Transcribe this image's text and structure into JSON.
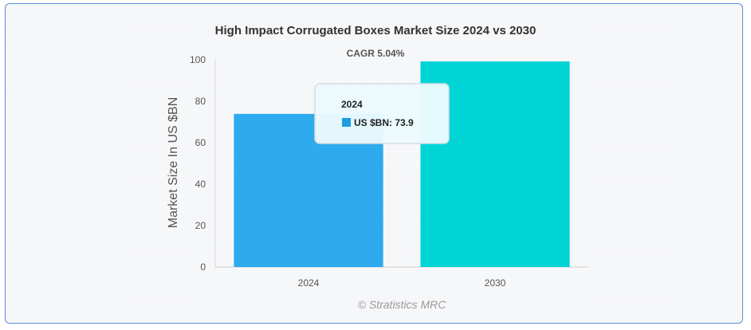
{
  "chart_data": {
    "type": "bar",
    "title": "High Impact Corrugated Boxes Market Size 2024 vs 2030",
    "annotation": "CAGR 5.04%",
    "ylabel": "Market Size In US $BN",
    "xlabel": "",
    "categories": [
      "2024",
      "2030"
    ],
    "series": [
      {
        "values": [
          73.9,
          99.2
        ]
      }
    ],
    "bar_colors": [
      "#2eaaee",
      "#00d4d4"
    ],
    "ylim": [
      0,
      100
    ],
    "yticks": [
      0,
      20,
      40,
      60,
      80,
      100
    ],
    "grid": false,
    "legend": "none",
    "credit": "© Stratistics MRC",
    "tooltip": {
      "title": "2024",
      "label": "US $BN: 73.9",
      "color": "#1f9be0"
    }
  }
}
